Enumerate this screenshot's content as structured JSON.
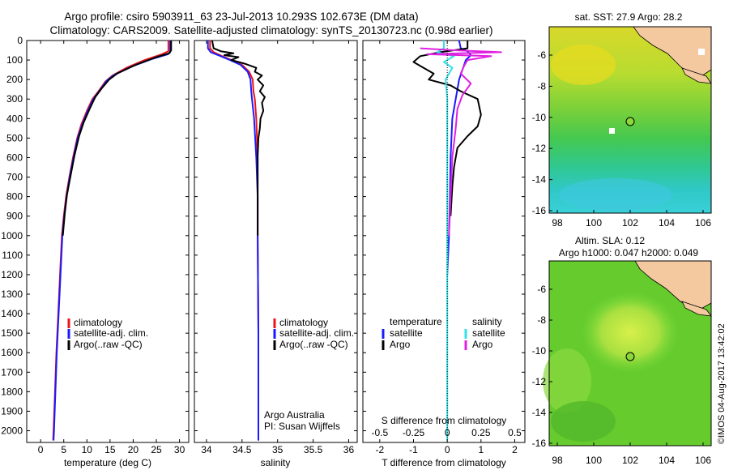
{
  "title": {
    "line1": "Argo profile: csiro 5903911_63 23-Jul-2013 10.293S 102.673E (DM data)",
    "line2": "Climatology: CARS2009. Satellite-adjusted climatology: synTS_20130723.nc (0.98d earlier)"
  },
  "colors": {
    "climatology": "#e8141c",
    "satellite": "#1a1aff",
    "argo": "#000000",
    "sat_s": "#33e0e8",
    "argo_s": "#e020e0",
    "land": "#f5c9a0"
  },
  "legend": {
    "climatology": "climatology",
    "satellite_adj": "satellite-adj. clim.",
    "argo_raw": "Argo(..raw -QC)",
    "temperature_hdr": "temperature",
    "salinity_hdr": "salinity",
    "satellite": "satellite",
    "argo": "Argo"
  },
  "credits": {
    "argo_australia": "Argo Australia",
    "pi": "PI: Susan Wijffels",
    "imos": "©IMOS 04-Aug-2017 13:42:02"
  },
  "sst_map": {
    "title": "sat. SST: 27.9 Argo: 28.2",
    "x_ticks": [
      "98",
      "100",
      "102",
      "104",
      "106"
    ],
    "y_ticks": [
      "-6",
      "-8",
      "-10",
      "-12",
      "-14",
      "-16"
    ]
  },
  "sla_map": {
    "title1": "Altim. SLA: 0.12",
    "title2": "Argo h1000: 0.047 h2000: 0.049",
    "x_ticks": [
      "98",
      "100",
      "102",
      "104",
      "106"
    ],
    "y_ticks": [
      "-6",
      "-8",
      "-10",
      "-12",
      "-14",
      "-16"
    ]
  },
  "chart_data": [
    {
      "type": "line",
      "panel": "temperature",
      "xlabel": "temperature (deg C)",
      "ylabel": "",
      "xlim": [
        -3,
        32
      ],
      "ylim": [
        2060,
        0
      ],
      "x_ticks": [
        0,
        5,
        10,
        15,
        20,
        25,
        30
      ],
      "y_ticks": [
        0,
        100,
        200,
        300,
        400,
        500,
        600,
        700,
        800,
        900,
        1000,
        1100,
        1200,
        1300,
        1400,
        1500,
        1600,
        1700,
        1800,
        1900,
        2000
      ],
      "series": [
        {
          "name": "climatology",
          "color": "#e8141c",
          "points": [
            [
              27.6,
              0
            ],
            [
              27.6,
              55
            ],
            [
              26.2,
              70
            ],
            [
              22.5,
              100
            ],
            [
              18.5,
              140
            ],
            [
              15.5,
              180
            ],
            [
              14.0,
              210
            ],
            [
              12.5,
              260
            ],
            [
              11.2,
              300
            ],
            [
              10.0,
              360
            ],
            [
              8.8,
              430
            ],
            [
              7.9,
              500
            ],
            [
              7.0,
              600
            ],
            [
              6.2,
              700
            ],
            [
              5.5,
              800
            ],
            [
              5.0,
              900
            ],
            [
              4.6,
              1000
            ],
            [
              4.2,
              1200
            ],
            [
              3.8,
              1400
            ],
            [
              3.4,
              1600
            ],
            [
              3.1,
              1800
            ],
            [
              2.8,
              2000
            ],
            [
              2.7,
              2050
            ]
          ]
        },
        {
          "name": "satellite-adj. clim.",
          "color": "#1a1aff",
          "points": [
            [
              28.0,
              0
            ],
            [
              28.0,
              60
            ],
            [
              27.5,
              70
            ],
            [
              24.0,
              95
            ],
            [
              19.5,
              135
            ],
            [
              16.0,
              175
            ],
            [
              14.3,
              205
            ],
            [
              12.8,
              255
            ],
            [
              11.4,
              300
            ],
            [
              10.2,
              360
            ],
            [
              9.0,
              430
            ],
            [
              8.0,
              500
            ],
            [
              7.1,
              600
            ],
            [
              6.3,
              700
            ],
            [
              5.6,
              800
            ],
            [
              5.1,
              900
            ],
            [
              4.7,
              1000
            ],
            [
              4.3,
              1200
            ],
            [
              3.9,
              1400
            ],
            [
              3.5,
              1600
            ],
            [
              3.2,
              1800
            ],
            [
              2.9,
              2000
            ],
            [
              2.8,
              2050
            ]
          ]
        },
        {
          "name": "Argo(..raw -QC)",
          "color": "#000000",
          "points": [
            [
              28.2,
              0
            ],
            [
              28.2,
              50
            ],
            [
              27.8,
              65
            ],
            [
              25.0,
              85
            ],
            [
              20.5,
              125
            ],
            [
              16.5,
              170
            ],
            [
              14.8,
              200
            ],
            [
              13.2,
              245
            ],
            [
              11.8,
              290
            ],
            [
              10.6,
              350
            ],
            [
              9.3,
              420
            ],
            [
              8.3,
              490
            ],
            [
              7.3,
              590
            ],
            [
              6.5,
              690
            ],
            [
              5.7,
              790
            ],
            [
              5.2,
              890
            ],
            [
              4.8,
              1000
            ]
          ]
        }
      ]
    },
    {
      "type": "line",
      "panel": "salinity",
      "xlabel": "salinity",
      "ylabel": "",
      "xlim": [
        33.83,
        36.12
      ],
      "ylim": [
        2060,
        0
      ],
      "x_ticks": [
        34,
        34.5,
        35,
        35.5,
        36
      ],
      "series": [
        {
          "name": "climatology",
          "color": "#e8141c",
          "points": [
            [
              34.05,
              0
            ],
            [
              34.05,
              40
            ],
            [
              34.1,
              60
            ],
            [
              34.22,
              80
            ],
            [
              34.35,
              100
            ],
            [
              34.5,
              125
            ],
            [
              34.6,
              160
            ],
            [
              34.65,
              200
            ],
            [
              34.66,
              260
            ],
            [
              34.68,
              300
            ],
            [
              34.7,
              400
            ],
            [
              34.72,
              600
            ],
            [
              34.72,
              800
            ],
            [
              34.72,
              1000
            ],
            [
              34.73,
              1500
            ],
            [
              34.73,
              2000
            ],
            [
              34.73,
              2050
            ]
          ]
        },
        {
          "name": "satellite-adj. clim.",
          "color": "#1a1aff",
          "points": [
            [
              34.02,
              0
            ],
            [
              34.02,
              40
            ],
            [
              34.06,
              60
            ],
            [
              34.2,
              80
            ],
            [
              34.33,
              100
            ],
            [
              34.48,
              125
            ],
            [
              34.58,
              160
            ],
            [
              34.62,
              200
            ],
            [
              34.63,
              260
            ],
            [
              34.64,
              300
            ],
            [
              34.67,
              400
            ],
            [
              34.7,
              600
            ],
            [
              34.72,
              800
            ],
            [
              34.72,
              1000
            ],
            [
              34.73,
              1500
            ],
            [
              34.73,
              2000
            ],
            [
              34.73,
              2050
            ]
          ]
        },
        {
          "name": "Argo(..raw -QC)",
          "color": "#000000",
          "points": [
            [
              34.08,
              0
            ],
            [
              34.1,
              40
            ],
            [
              34.2,
              55
            ],
            [
              34.38,
              65
            ],
            [
              34.25,
              75
            ],
            [
              34.45,
              85
            ],
            [
              34.35,
              100
            ],
            [
              34.55,
              120
            ],
            [
              34.7,
              140
            ],
            [
              34.68,
              160
            ],
            [
              34.78,
              180
            ],
            [
              34.72,
              200
            ],
            [
              34.8,
              230
            ],
            [
              34.75,
              260
            ],
            [
              34.82,
              290
            ],
            [
              34.78,
              320
            ],
            [
              34.8,
              360
            ],
            [
              34.76,
              400
            ],
            [
              34.75,
              450
            ],
            [
              34.73,
              500
            ],
            [
              34.72,
              600
            ],
            [
              34.72,
              800
            ],
            [
              34.72,
              1000
            ]
          ]
        }
      ]
    },
    {
      "type": "line",
      "panel": "difference",
      "xlabel": "T difference from climatology",
      "xlabel_top": "S difference from climatology",
      "xlim": [
        -2.5,
        2.3
      ],
      "ylim": [
        2060,
        0
      ],
      "x_ticks": [
        -2,
        -1,
        0,
        1,
        2
      ],
      "x_ticks_s": [
        "-0.5",
        "-0.25",
        "0",
        "0.25",
        "0.5"
      ],
      "series": [
        {
          "name": "temperature satellite",
          "color": "#1a1aff",
          "points": [
            [
              0.35,
              0
            ],
            [
              0.4,
              40
            ],
            [
              0.6,
              55
            ],
            [
              0.7,
              75
            ],
            [
              0.55,
              100
            ],
            [
              0.45,
              150
            ],
            [
              0.35,
              200
            ],
            [
              0.25,
              300
            ],
            [
              0.15,
              400
            ],
            [
              0.1,
              600
            ],
            [
              0.08,
              800
            ],
            [
              0.05,
              1000
            ],
            [
              0.0,
              1200
            ]
          ]
        },
        {
          "name": "temperature Argo",
          "color": "#000000",
          "points": [
            [
              0.6,
              0
            ],
            [
              0.6,
              40
            ],
            [
              -0.2,
              60
            ],
            [
              -0.8,
              80
            ],
            [
              -1.0,
              110
            ],
            [
              -0.7,
              140
            ],
            [
              -0.4,
              170
            ],
            [
              -0.55,
              200
            ],
            [
              0.1,
              230
            ],
            [
              0.4,
              260
            ],
            [
              0.9,
              300
            ],
            [
              1.0,
              380
            ],
            [
              0.9,
              440
            ],
            [
              0.6,
              490
            ],
            [
              0.3,
              550
            ],
            [
              0.2,
              650
            ],
            [
              0.15,
              750
            ],
            [
              0.1,
              900
            ]
          ]
        },
        {
          "name": "salinity satellite",
          "color": "#33e0e8",
          "points": [
            [
              -0.1,
              0
            ],
            [
              -0.1,
              40
            ],
            [
              -0.3,
              60
            ],
            [
              0.2,
              80
            ],
            [
              -0.1,
              110
            ],
            [
              0.15,
              140
            ],
            [
              -0.05,
              200
            ],
            [
              0.0,
              300
            ],
            [
              0.0,
              600
            ],
            [
              0.0,
              1000
            ],
            [
              0.0,
              1500
            ],
            [
              0.0,
              2050
            ]
          ]
        },
        {
          "name": "salinity Argo",
          "color": "#e020e0",
          "points": [
            [
              -0.8,
              40
            ],
            [
              0.2,
              50
            ],
            [
              1.6,
              60
            ],
            [
              -0.6,
              70
            ],
            [
              1.3,
              80
            ],
            [
              0.6,
              100
            ],
            [
              0.5,
              130
            ],
            [
              0.4,
              170
            ],
            [
              0.7,
              220
            ],
            [
              0.45,
              280
            ],
            [
              0.3,
              350
            ],
            [
              0.25,
              450
            ],
            [
              0.15,
              600
            ],
            [
              0.1,
              800
            ],
            [
              0.05,
              1000
            ]
          ]
        }
      ]
    }
  ]
}
